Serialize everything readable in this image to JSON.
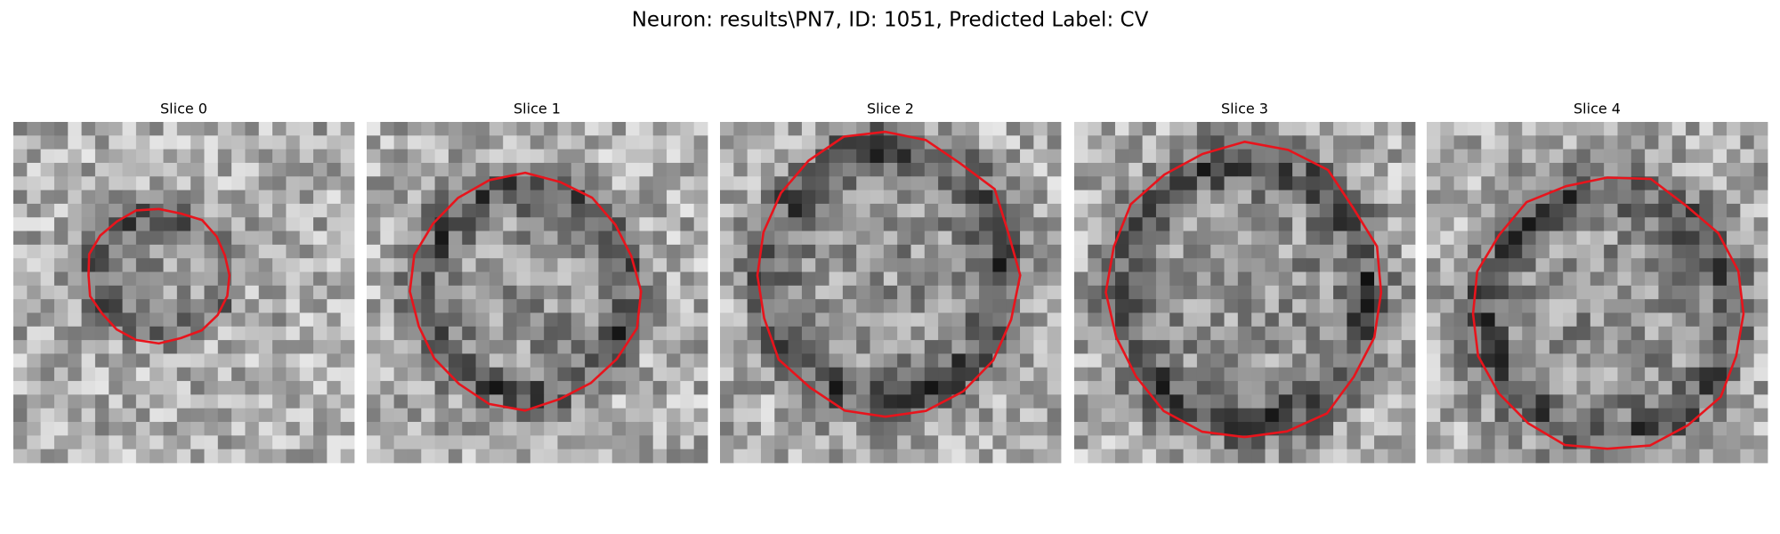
{
  "header": {
    "title": "Neuron: results\\PN7, ID: 1051, Predicted Label: CV"
  },
  "panels": [
    {
      "title": "Slice 0"
    },
    {
      "title": "Slice 1"
    },
    {
      "title": "Slice 2"
    },
    {
      "title": "Slice 3"
    },
    {
      "title": "Slice 4"
    }
  ]
}
